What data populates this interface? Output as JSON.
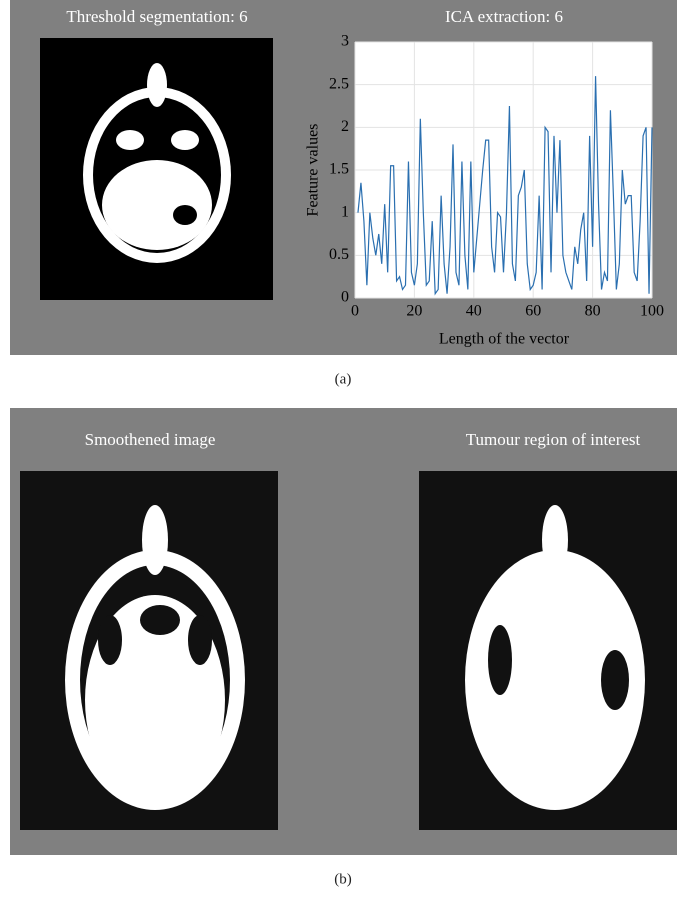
{
  "chart_data": {
    "type": "line",
    "title": "ICA extraction: 6",
    "xlabel": "Length of the vector",
    "ylabel": "Feature values",
    "x": [
      1,
      2,
      3,
      4,
      5,
      6,
      7,
      8,
      9,
      10,
      11,
      12,
      13,
      14,
      15,
      16,
      17,
      18,
      19,
      20,
      21,
      22,
      23,
      24,
      25,
      26,
      27,
      28,
      29,
      30,
      31,
      32,
      33,
      34,
      35,
      36,
      37,
      38,
      39,
      40,
      41,
      42,
      43,
      44,
      45,
      46,
      47,
      48,
      49,
      50,
      51,
      52,
      53,
      54,
      55,
      56,
      57,
      58,
      59,
      60,
      61,
      62,
      63,
      64,
      65,
      66,
      67,
      68,
      69,
      70,
      71,
      72,
      73,
      74,
      75,
      76,
      77,
      78,
      79,
      80,
      81,
      82,
      83,
      84,
      85,
      86,
      87,
      88,
      89,
      90,
      91,
      92,
      93,
      94,
      95,
      96,
      97,
      98,
      99,
      100
    ],
    "series": [
      {
        "color": "#2a6fb0",
        "values": [
          1.0,
          1.35,
          0.9,
          0.15,
          1.0,
          0.7,
          0.5,
          0.75,
          0.4,
          1.1,
          0.3,
          1.55,
          1.55,
          0.2,
          0.25,
          0.1,
          0.15,
          1.6,
          0.3,
          0.15,
          0.4,
          2.1,
          1.0,
          0.15,
          0.2,
          0.9,
          0.05,
          0.1,
          1.2,
          0.4,
          0.05,
          0.6,
          1.8,
          0.3,
          0.15,
          1.6,
          0.5,
          0.1,
          1.6,
          0.3,
          0.7,
          1.1,
          1.5,
          1.85,
          1.85,
          0.6,
          0.3,
          1.0,
          0.95,
          0.3,
          1.0,
          2.25,
          0.4,
          0.2,
          1.2,
          1.3,
          1.5,
          0.4,
          0.1,
          0.15,
          0.3,
          1.2,
          0.1,
          2.0,
          1.95,
          0.3,
          1.9,
          1.0,
          1.85,
          0.5,
          0.3,
          0.2,
          0.1,
          0.6,
          0.4,
          0.8,
          1.0,
          0.2,
          1.9,
          0.6,
          2.6,
          1.1,
          0.1,
          0.3,
          0.2,
          2.2,
          1.2,
          0.1,
          0.4,
          1.5,
          1.1,
          1.2,
          1.2,
          0.3,
          0.2,
          0.9,
          1.9,
          2.0,
          0.05,
          2.0
        ]
      }
    ],
    "xlim": [
      0,
      100
    ],
    "xticks": [
      0,
      20,
      40,
      60,
      80,
      100
    ],
    "ylim": [
      0,
      3
    ],
    "yticks": [
      0,
      0.5,
      1,
      1.5,
      2,
      2.5,
      3
    ],
    "grid": true
  },
  "panel_a": {
    "image_title": "Threshold segmentation: 6",
    "label": "(a)"
  },
  "panel_b": {
    "left_title": "Smoothened image",
    "right_title": "Tumour region of interest",
    "label": "(b)"
  }
}
